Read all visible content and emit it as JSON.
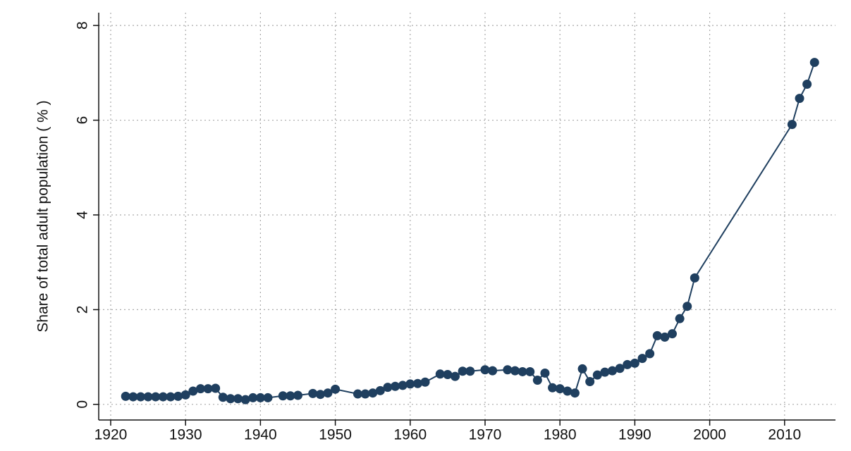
{
  "chart_data": {
    "type": "line",
    "y_label": "Share of total adult population ( % )",
    "x": [
      1922,
      1923,
      1924,
      1925,
      1926,
      1927,
      1928,
      1929,
      1930,
      1931,
      1932,
      1933,
      1934,
      1935,
      1936,
      1937,
      1938,
      1939,
      1940,
      1941,
      1943,
      1944,
      1945,
      1947,
      1948,
      1949,
      1950,
      1953,
      1954,
      1955,
      1956,
      1957,
      1958,
      1959,
      1960,
      1961,
      1962,
      1964,
      1965,
      1966,
      1967,
      1968,
      1970,
      1971,
      1973,
      1974,
      1975,
      1976,
      1977,
      1978,
      1979,
      1980,
      1981,
      1982,
      1983,
      1984,
      1985,
      1986,
      1987,
      1988,
      1989,
      1990,
      1991,
      1992,
      1993,
      1994,
      1995,
      1996,
      1997,
      1998,
      2011,
      2012,
      2013,
      2014
    ],
    "series": [
      {
        "color": "#1f3f5f",
        "values": [
          0.17,
          0.16,
          0.16,
          0.16,
          0.16,
          0.16,
          0.16,
          0.17,
          0.2,
          0.28,
          0.33,
          0.33,
          0.34,
          0.15,
          0.12,
          0.12,
          0.1,
          0.14,
          0.14,
          0.14,
          0.18,
          0.18,
          0.19,
          0.23,
          0.21,
          0.24,
          0.32,
          0.22,
          0.22,
          0.24,
          0.29,
          0.36,
          0.38,
          0.4,
          0.43,
          0.44,
          0.47,
          0.64,
          0.63,
          0.59,
          0.7,
          0.7,
          0.73,
          0.71,
          0.73,
          0.71,
          0.69,
          0.69,
          0.51,
          0.66,
          0.35,
          0.33,
          0.28,
          0.24,
          0.75,
          0.48,
          0.62,
          0.68,
          0.71,
          0.76,
          0.84,
          0.87,
          0.97,
          1.07,
          1.45,
          1.42,
          1.49,
          1.81,
          2.07,
          2.67,
          5.91,
          6.46,
          6.76,
          7.22
        ]
      }
    ],
    "xlim": [
      1918.4,
      2016.8
    ],
    "xticks": [
      1920,
      1930,
      1940,
      1950,
      1960,
      1970,
      1980,
      1990,
      2000,
      2010
    ],
    "ylim": [
      -0.33,
      8.27
    ],
    "yticks": [
      0,
      2,
      4,
      6,
      8
    ],
    "grid": true
  }
}
